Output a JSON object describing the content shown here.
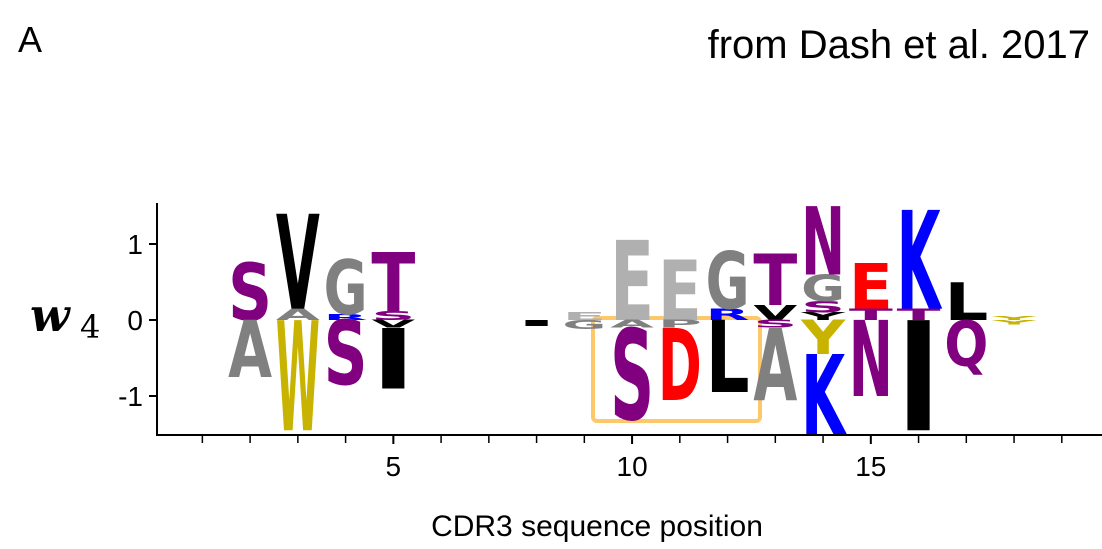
{
  "chart_data": {
    "type": "logo",
    "panel_label": "A",
    "title": "from Dash et al. 2017",
    "xlabel": "CDR3 sequence position",
    "ylabel": {
      "symbol": "w",
      "subscript": "4"
    },
    "xlim": [
      0.05,
      19.8
    ],
    "ylim": [
      -1.5,
      1.5
    ],
    "xticks": [
      5,
      10,
      15
    ],
    "xminor_ticks": [
      1,
      2,
      3,
      4,
      5,
      6,
      7,
      8,
      9,
      10,
      11,
      12,
      13,
      14,
      15,
      16,
      17,
      18,
      19
    ],
    "yticks": [
      -1,
      0,
      1
    ],
    "positions": [
      {
        "x": 2,
        "letters": [
          {
            "letter": "S",
            "value": 0.75,
            "color": "#800080"
          },
          {
            "letter": "A",
            "value": -0.75,
            "color": "#808080"
          }
        ]
      },
      {
        "x": 3,
        "letters": [
          {
            "letter": "A",
            "value": 0.15,
            "color": "#808080"
          },
          {
            "letter": "V",
            "value": 1.25,
            "color": "#000000"
          },
          {
            "letter": "W",
            "value": -1.45,
            "color": "#c8b400"
          }
        ]
      },
      {
        "x": 4,
        "letters": [
          {
            "letter": "R",
            "value": 0.08,
            "color": "#0000ff"
          },
          {
            "letter": "G",
            "value": 0.72,
            "color": "#808080"
          },
          {
            "letter": "S",
            "value": -0.85,
            "color": "#800080"
          }
        ]
      },
      {
        "x": 5,
        "letters": [
          {
            "letter": "S",
            "value": 0.12,
            "color": "#800080"
          },
          {
            "letter": "T",
            "value": 0.78,
            "color": "#800080"
          },
          {
            "letter": "V",
            "value": -0.1,
            "color": "#000000"
          },
          {
            "letter": "I",
            "value": -0.8,
            "color": "#000000"
          }
        ]
      },
      {
        "x": 8,
        "letters": [
          {
            "letter": "I",
            "value": -0.08,
            "color": "#000000"
          }
        ]
      },
      {
        "x": 9,
        "letters": [
          {
            "letter": "E",
            "value": 0.1,
            "color": "#b0b0b0"
          },
          {
            "letter": "G",
            "value": -0.12,
            "color": "#808080"
          }
        ]
      },
      {
        "x": 10,
        "letters": [
          {
            "letter": "E",
            "value": 1.05,
            "color": "#b0b0b0"
          },
          {
            "letter": "A",
            "value": -0.1,
            "color": "#808080"
          },
          {
            "letter": "S",
            "value": -1.2,
            "color": "#800080"
          }
        ]
      },
      {
        "x": 11,
        "letters": [
          {
            "letter": "E",
            "value": 0.8,
            "color": "#b0b0b0"
          },
          {
            "letter": "P",
            "value": -0.1,
            "color": "#808080"
          },
          {
            "letter": "D",
            "value": -0.95,
            "color": "#ff0000"
          }
        ]
      },
      {
        "x": 12,
        "letters": [
          {
            "letter": "R",
            "value": 0.15,
            "color": "#0000ff"
          },
          {
            "letter": "G",
            "value": 0.75,
            "color": "#808080"
          },
          {
            "letter": "L",
            "value": -0.95,
            "color": "#000000"
          }
        ]
      },
      {
        "x": 13,
        "letters": [
          {
            "letter": "V",
            "value": 0.2,
            "color": "#000000"
          },
          {
            "letter": "T",
            "value": 0.68,
            "color": "#800080"
          },
          {
            "letter": "S",
            "value": -0.1,
            "color": "#800080"
          },
          {
            "letter": "A",
            "value": -0.95,
            "color": "#808080"
          }
        ]
      },
      {
        "x": 14,
        "letters": [
          {
            "letter": "Y",
            "value": 0.1,
            "color": "#000000"
          },
          {
            "letter": "S",
            "value": 0.15,
            "color": "#800080"
          },
          {
            "letter": "G",
            "value": 0.35,
            "color": "#808080"
          },
          {
            "letter": "N",
            "value": 0.9,
            "color": "#800080"
          },
          {
            "letter": "Y",
            "value": -0.45,
            "color": "#c8b400"
          },
          {
            "letter": "K",
            "value": -1.05,
            "color": "#0000ff"
          }
        ]
      },
      {
        "x": 15,
        "letters": [
          {
            "letter": "T",
            "value": 0.15,
            "color": "#800080"
          },
          {
            "letter": "E",
            "value": 0.6,
            "color": "#ff0000"
          },
          {
            "letter": "N",
            "value": -1.0,
            "color": "#800080"
          }
        ]
      },
      {
        "x": 16,
        "letters": [
          {
            "letter": "T",
            "value": 0.15,
            "color": "#800080"
          },
          {
            "letter": "K",
            "value": 1.3,
            "color": "#0000ff"
          },
          {
            "letter": "I",
            "value": -1.45,
            "color": "#000000"
          }
        ]
      },
      {
        "x": 17,
        "letters": [
          {
            "letter": "L",
            "value": 0.5,
            "color": "#000000"
          },
          {
            "letter": "Q",
            "value": -0.6,
            "color": "#800080"
          }
        ]
      },
      {
        "x": 18,
        "letters": [
          {
            "letter": "Y",
            "value": 0.05,
            "color": "#c8b400"
          },
          {
            "letter": "Y",
            "value": -0.06,
            "color": "#c8b400"
          }
        ]
      }
    ]
  }
}
